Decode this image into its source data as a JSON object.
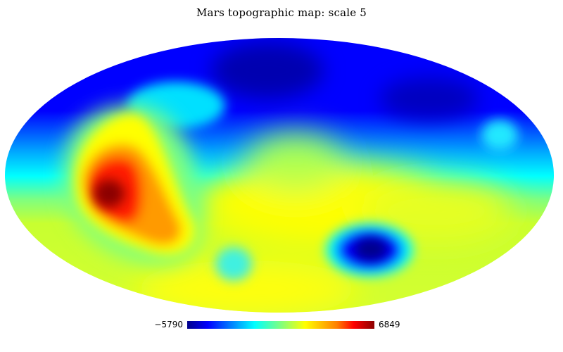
{
  "title": "Mars topographic map: scale 5",
  "colorbar": {
    "min_label": "−5790",
    "max_label": "6849",
    "min_value": -5790,
    "max_value": 6849,
    "colormap": "jet",
    "stops": [
      "#00008b",
      "#0000ff",
      "#00ffff",
      "#7fff7f",
      "#ffff00",
      "#ff7f00",
      "#ff0000",
      "#8b0000"
    ]
  },
  "colors": {
    "background": "#ffffff",
    "low_blue": "#0000ff",
    "deep_blue": "#00008b",
    "cyan": "#00ffff",
    "yellow_green": "#c8ff30",
    "yellow": "#ffff00",
    "orange": "#ff7f00",
    "red": "#ff0000",
    "dark_red": "#8b0000"
  },
  "projection": "Mollweide"
}
